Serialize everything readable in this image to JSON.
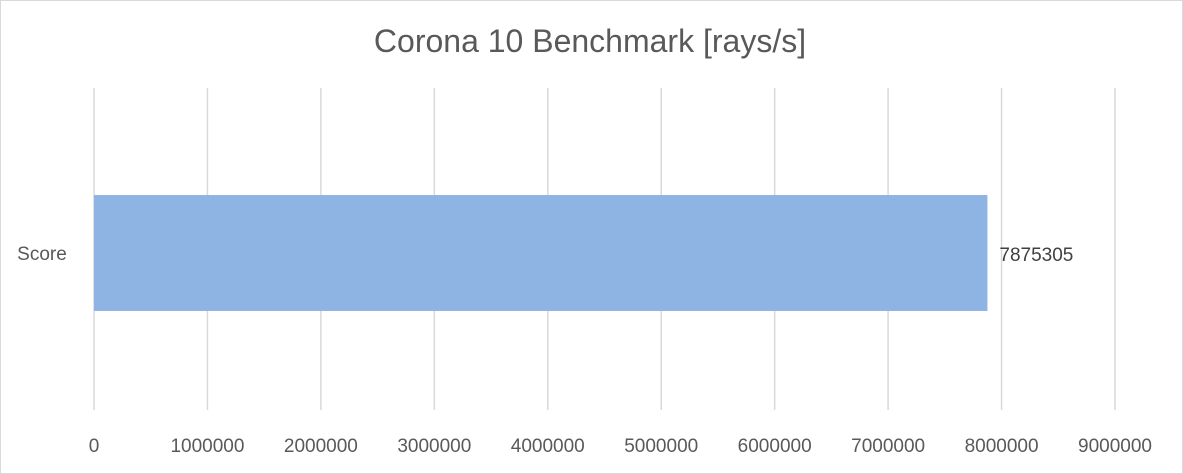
{
  "chart_data": {
    "type": "bar",
    "orientation": "horizontal",
    "title": "Corona 10 Benchmark [rays/s]",
    "xlabel": "",
    "ylabel": "",
    "categories": [
      "Score"
    ],
    "series": [
      {
        "values": [
          7875305
        ],
        "color": "#8eb4e3"
      }
    ],
    "data_labels": [
      "7875305"
    ],
    "xlim": [
      0,
      9000000
    ],
    "x_ticks": [
      0,
      1000000,
      2000000,
      3000000,
      4000000,
      5000000,
      6000000,
      7000000,
      8000000,
      9000000
    ],
    "x_tick_labels": [
      "0",
      "1000000",
      "2000000",
      "3000000",
      "4000000",
      "5000000",
      "6000000",
      "7000000",
      "8000000",
      "9000000"
    ],
    "grid": true,
    "legend": "none"
  }
}
